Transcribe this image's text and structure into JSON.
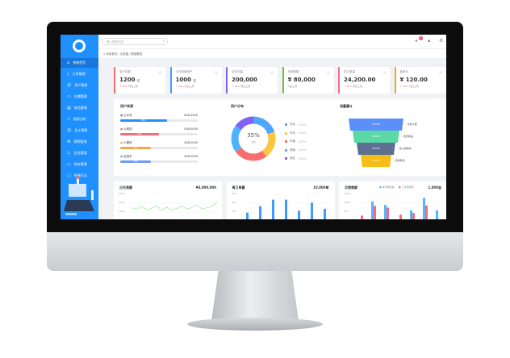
{
  "sidebar": {
    "items": [
      {
        "icon": "home-icon",
        "glyph": "⌂",
        "label": "系统首页"
      },
      {
        "icon": "order-icon",
        "glyph": "▯",
        "label": "订单管理"
      },
      {
        "icon": "user-icon",
        "glyph": "☺",
        "label": "用户管理"
      },
      {
        "icon": "warehouse-icon",
        "glyph": "▭",
        "label": "仓储管理"
      },
      {
        "icon": "goods-icon",
        "glyph": "▤",
        "label": "商品管理"
      },
      {
        "icon": "report-icon",
        "glyph": "▱",
        "label": "报表分析"
      },
      {
        "icon": "staff-icon",
        "glyph": "☺",
        "label": "员工管理"
      },
      {
        "icon": "settings-icon",
        "glyph": "⚙",
        "label": "营销管理"
      },
      {
        "icon": "member-icon",
        "glyph": "☖",
        "label": "会员管理"
      },
      {
        "icon": "finance-icon",
        "glyph": "▭",
        "label": "财务管理"
      },
      {
        "icon": "monitor-icon",
        "glyph": "▢",
        "label": "系统日志"
      }
    ]
  },
  "header": {
    "search_placeholder": "输入搜索内容",
    "notification_count": "5"
  },
  "breadcrumb": "系统首页 / 仪表盘 / 数据概览",
  "stats": [
    {
      "title": "用户总数",
      "value": "1200",
      "unit": "位",
      "trend": "↑ 10%",
      "trend_label": "同比上周",
      "color": "#f56c6c"
    },
    {
      "title": "今日新增用户",
      "value": "1000",
      "unit": "位",
      "trend": "↑ 10%",
      "trend_label": "同比上周",
      "color": "#409eff"
    },
    {
      "title": "总访问量",
      "value": "200,000",
      "unit": "",
      "trend": "↑ 10%",
      "trend_label": "同比上周",
      "color": "#7b61ff"
    },
    {
      "title": "总销售额",
      "value": "¥ 80,000",
      "unit": "",
      "trend": "",
      "trend_label": "同比上周",
      "color": "#67c23a"
    },
    {
      "title": "总订单量",
      "value": "24,200.00",
      "unit": "",
      "trend": "↓ 20%",
      "trend_label": "同比上周",
      "color": "#f56c8f"
    },
    {
      "title": "客单价",
      "value": "¥ 120.00",
      "unit": "",
      "trend": "↑ 10%",
      "trend_label": "同比上周",
      "color": "#f5a623"
    }
  ],
  "progress": {
    "title": "用户来源",
    "items": [
      {
        "label": "公众号",
        "value": "600/1000",
        "pct": 60,
        "color": "#1e90ff"
      },
      {
        "label": "公网站",
        "value": "500/1000",
        "pct": 50,
        "color": "#f56c7f"
      },
      {
        "label": "小程序",
        "value": "400/1000",
        "pct": 40,
        "color": "#f5a54a"
      },
      {
        "label": "应用市",
        "value": "400/1000",
        "pct": 40,
        "color": "#6e9cf5"
      }
    ]
  },
  "donut": {
    "title": "用户分布",
    "center_value": "35%",
    "center_label": "占比",
    "slices": [
      {
        "label": "华北",
        "value": "10000",
        "share": 20,
        "color": "#4ea6ff"
      },
      {
        "label": "华东",
        "value": "10000",
        "share": 20,
        "color": "#fcc641"
      },
      {
        "label": "华南",
        "value": "10000",
        "share": 25,
        "color": "#f86e6e"
      },
      {
        "label": "西南",
        "value": "10000",
        "share": 20,
        "color": "#4db3ff"
      },
      {
        "label": "西北",
        "value": "10000",
        "share": 15,
        "color": "#8162f5"
      }
    ]
  },
  "funnel": {
    "title": "流量漏斗",
    "stages": [
      {
        "value": "20000",
        "label": "访问人数",
        "color": "#5b8ff9"
      },
      {
        "value": "20000",
        "label": "浏览商品",
        "color": "#5ad8a6"
      },
      {
        "value": "20000",
        "label": "加入购物车",
        "color": "#5d7092"
      },
      {
        "value": "10000",
        "label": "完成购买",
        "color": "#f6bd16"
      }
    ]
  },
  "chart_data": [
    {
      "type": "line",
      "title": "日交易额",
      "total": "¥3,000,000",
      "yticks": [
        "6000",
        "4000",
        "2000"
      ],
      "values": [
        3000,
        2600,
        3300,
        2500,
        2900,
        3400,
        2400,
        3100,
        2500,
        2800,
        3400,
        2700,
        3000,
        3600,
        2700,
        3000,
        3200,
        4300
      ],
      "color": "#8fe08f"
    },
    {
      "type": "bar",
      "title": "周订单量",
      "total": "10,000单",
      "yticks": [
        "900",
        "600",
        "300"
      ],
      "values": [
        280,
        500,
        720,
        720,
        350,
        620,
        410
      ],
      "color": "#3d9bff"
    },
    {
      "type": "bar",
      "title": "月销售额",
      "total": "1,000金",
      "yticks": [
        "1500",
        "1000",
        "500"
      ],
      "series": [
        {
          "name": "本月销售额",
          "values": [
            0,
            1100,
            900,
            0,
            600,
            1300,
            600
          ],
          "color": "#4fb6ff"
        },
        {
          "name": "上月销售额",
          "values": [
            300,
            850,
            750,
            350,
            450,
            870,
            0
          ],
          "color": "#f56c7f"
        }
      ]
    }
  ]
}
